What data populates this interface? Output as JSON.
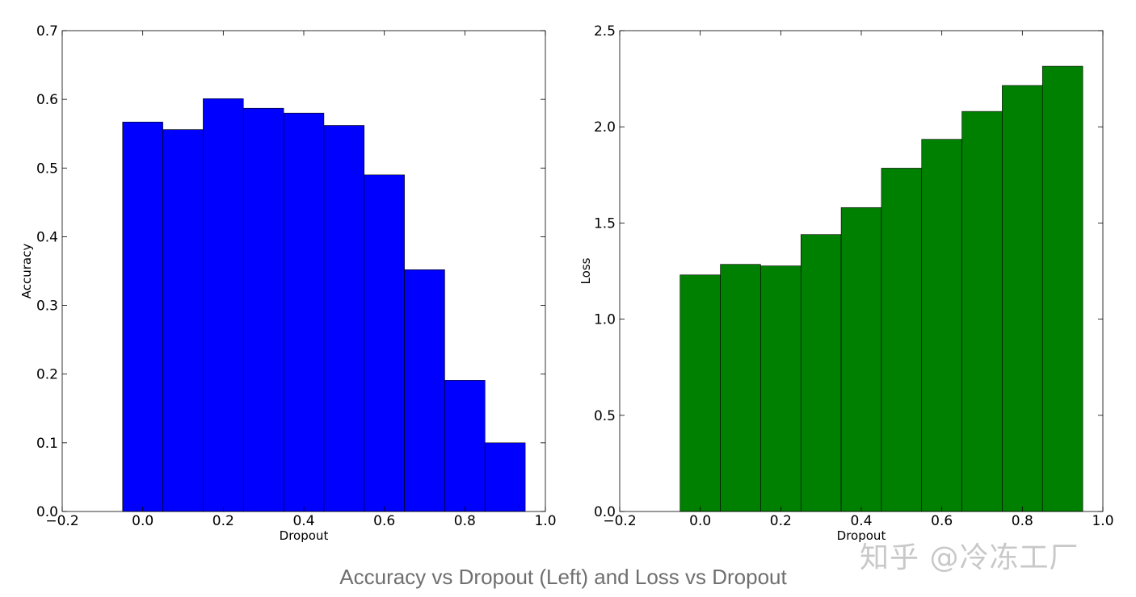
{
  "chart_data": [
    {
      "type": "bar",
      "xlabel": "Dropout",
      "ylabel": "Accuracy",
      "x": [
        0.0,
        0.1,
        0.2,
        0.3,
        0.4,
        0.5,
        0.6,
        0.7,
        0.8,
        0.9
      ],
      "values": [
        0.567,
        0.556,
        0.601,
        0.587,
        0.58,
        0.562,
        0.49,
        0.352,
        0.191,
        0.1
      ],
      "xlim": [
        -0.2,
        1.0
      ],
      "ylim": [
        0.0,
        0.7
      ],
      "xticks": [
        "−0.2",
        "0.0",
        "0.2",
        "0.4",
        "0.6",
        "0.8",
        "1.0"
      ],
      "yticks": [
        "0.0",
        "0.1",
        "0.2",
        "0.3",
        "0.4",
        "0.5",
        "0.6",
        "0.7"
      ],
      "bar_color": "#0000ff",
      "grid": false
    },
    {
      "type": "bar",
      "xlabel": "Dropout",
      "ylabel": "Loss",
      "x": [
        0.0,
        0.1,
        0.2,
        0.3,
        0.4,
        0.5,
        0.6,
        0.7,
        0.8,
        0.9
      ],
      "values": [
        1.23,
        1.285,
        1.277,
        1.44,
        1.58,
        1.785,
        1.935,
        2.08,
        2.215,
        2.315
      ],
      "xlim": [
        -0.2,
        1.0
      ],
      "ylim": [
        0.0,
        2.5
      ],
      "xticks": [
        "−0.2",
        "0.0",
        "0.2",
        "0.4",
        "0.6",
        "0.8",
        "1.0"
      ],
      "yticks": [
        "0.0",
        "0.5",
        "1.0",
        "1.5",
        "2.0",
        "2.5"
      ],
      "bar_color": "#008000",
      "grid": false
    }
  ],
  "caption": "Accuracy vs Dropout (Left) and Loss vs Dropout",
  "watermark": "知乎 @冷冻工厂"
}
